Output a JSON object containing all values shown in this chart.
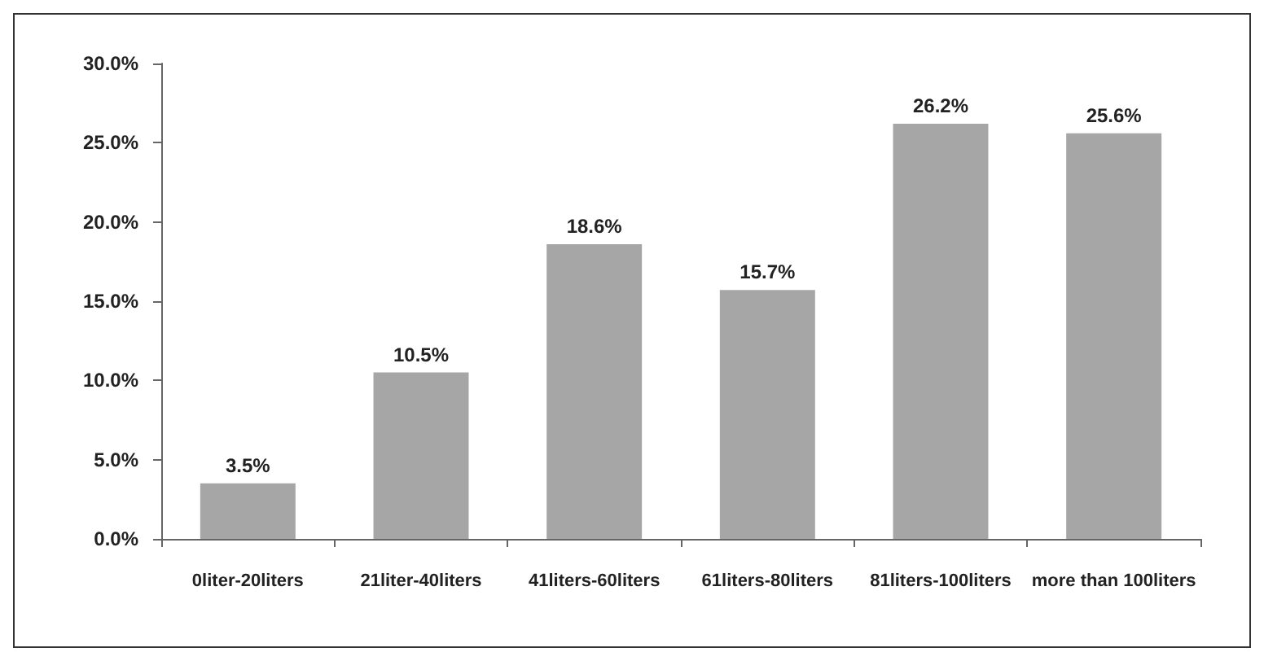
{
  "chart_data": {
    "type": "bar",
    "categories": [
      "0liter-20liters",
      "21liter-40liters",
      "41liters-60liters",
      "61liters-80liters",
      "81liters-100liters",
      "more than 100liters"
    ],
    "values": [
      3.5,
      10.5,
      18.6,
      15.7,
      26.2,
      25.6
    ],
    "value_labels": [
      "3.5%",
      "10.5%",
      "18.6%",
      "15.7%",
      "26.2%",
      "25.6%"
    ],
    "color": "#a6a6a6",
    "ylim": [
      0,
      30
    ],
    "yticks": [
      {
        "value": 0,
        "label": "0.0%"
      },
      {
        "value": 5,
        "label": "5.0%"
      },
      {
        "value": 10,
        "label": "10.0%"
      },
      {
        "value": 15,
        "label": "15.0%"
      },
      {
        "value": 20,
        "label": "20.0%"
      },
      {
        "value": 25,
        "label": "25.0%"
      },
      {
        "value": 30,
        "label": "30.0%"
      }
    ],
    "grid": false
  }
}
